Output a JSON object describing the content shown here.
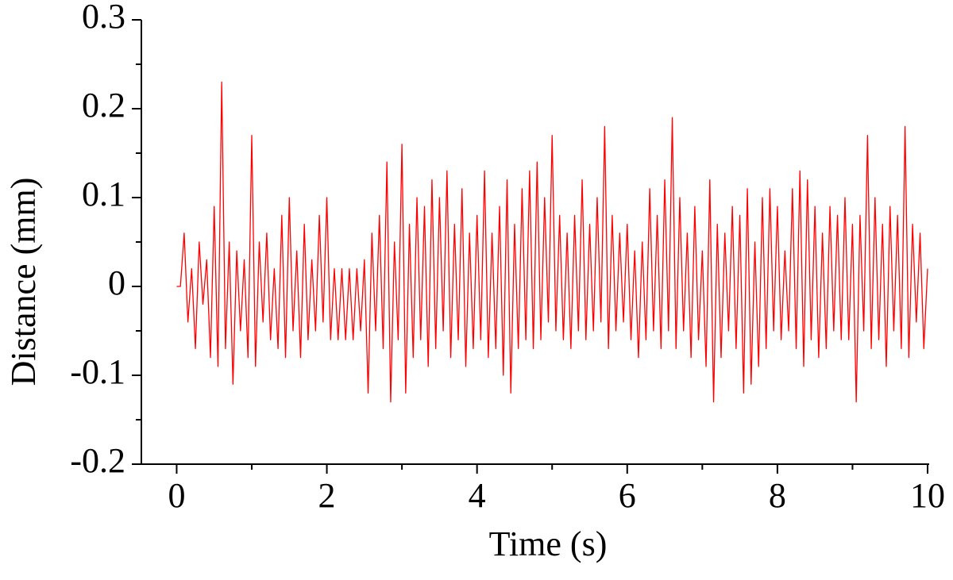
{
  "chart_data": {
    "type": "line",
    "xlabel": "Time (s)",
    "ylabel": "Distance (mm)",
    "xlim": [
      -0.47,
      10
    ],
    "ylim": [
      -0.2,
      0.3
    ],
    "xticks": [
      0,
      2,
      4,
      6,
      8,
      10
    ],
    "yticks": [
      -0.2,
      -0.1,
      0,
      0.1,
      0.2,
      0.3
    ],
    "xminor": [
      1,
      3,
      5,
      7,
      9
    ],
    "yminor": [
      -0.15,
      -0.05,
      0.05,
      0.15,
      0.25
    ],
    "grid": false,
    "series": [
      {
        "color": "#ff0000",
        "x": [
          0,
          0.05,
          0.1,
          0.15,
          0.2,
          0.25,
          0.3,
          0.35,
          0.4,
          0.45,
          0.5,
          0.55,
          0.6,
          0.65,
          0.7,
          0.75,
          0.8,
          0.85,
          0.9,
          0.95,
          1,
          1.05,
          1.1,
          1.15,
          1.2,
          1.25,
          1.3,
          1.35,
          1.4,
          1.45,
          1.5,
          1.55,
          1.6,
          1.65,
          1.7,
          1.75,
          1.8,
          1.85,
          1.9,
          1.95,
          2,
          2.05,
          2.1,
          2.15,
          2.2,
          2.25,
          2.3,
          2.35,
          2.4,
          2.45,
          2.5,
          2.55,
          2.6,
          2.65,
          2.7,
          2.75,
          2.8,
          2.85,
          2.9,
          2.95,
          3,
          3.05,
          3.1,
          3.15,
          3.2,
          3.25,
          3.3,
          3.35,
          3.4,
          3.45,
          3.5,
          3.55,
          3.6,
          3.65,
          3.7,
          3.75,
          3.8,
          3.85,
          3.9,
          3.95,
          4,
          4.05,
          4.1,
          4.15,
          4.2,
          4.25,
          4.3,
          4.35,
          4.4,
          4.45,
          4.5,
          4.55,
          4.6,
          4.65,
          4.7,
          4.75,
          4.8,
          4.85,
          4.9,
          4.95,
          5,
          5.05,
          5.1,
          5.15,
          5.2,
          5.25,
          5.3,
          5.35,
          5.4,
          5.45,
          5.5,
          5.55,
          5.6,
          5.65,
          5.7,
          5.75,
          5.8,
          5.85,
          5.9,
          5.95,
          6,
          6.05,
          6.1,
          6.15,
          6.2,
          6.25,
          6.3,
          6.35,
          6.4,
          6.45,
          6.5,
          6.55,
          6.6,
          6.65,
          6.7,
          6.75,
          6.8,
          6.85,
          6.9,
          6.95,
          7,
          7.05,
          7.1,
          7.15,
          7.2,
          7.25,
          7.3,
          7.35,
          7.4,
          7.45,
          7.5,
          7.55,
          7.6,
          7.65,
          7.7,
          7.75,
          7.8,
          7.85,
          7.9,
          7.95,
          8,
          8.05,
          8.1,
          8.15,
          8.2,
          8.25,
          8.3,
          8.35,
          8.4,
          8.45,
          8.5,
          8.55,
          8.6,
          8.65,
          8.7,
          8.75,
          8.8,
          8.85,
          8.9,
          8.95,
          9,
          9.05,
          9.1,
          9.15,
          9.2,
          9.25,
          9.3,
          9.35,
          9.4,
          9.45,
          9.5,
          9.55,
          9.6,
          9.65,
          9.7,
          9.75,
          9.8,
          9.85,
          9.9,
          9.95,
          10
        ],
        "values": [
          0,
          0,
          0.06,
          -0.04,
          0.02,
          -0.07,
          0.05,
          -0.02,
          0.03,
          -0.08,
          0.09,
          -0.09,
          0.23,
          -0.07,
          0.05,
          -0.11,
          0.04,
          -0.05,
          0.03,
          -0.08,
          0.17,
          -0.09,
          0.05,
          -0.04,
          0.06,
          -0.06,
          0.02,
          -0.07,
          0.08,
          -0.08,
          0.1,
          -0.05,
          0.04,
          -0.08,
          0.07,
          -0.06,
          0.03,
          -0.05,
          0.08,
          -0.04,
          0.1,
          -0.06,
          0.02,
          -0.06,
          0.02,
          -0.06,
          0.02,
          -0.06,
          0.02,
          -0.05,
          0.03,
          -0.12,
          0.06,
          -0.05,
          0.08,
          -0.07,
          0.14,
          -0.13,
          0.05,
          -0.06,
          0.16,
          -0.12,
          0.07,
          -0.08,
          0.1,
          -0.06,
          0.09,
          -0.09,
          0.12,
          -0.07,
          0.1,
          -0.05,
          0.13,
          -0.08,
          0.07,
          -0.06,
          0.11,
          -0.09,
          0.06,
          -0.07,
          0.08,
          -0.06,
          0.13,
          -0.08,
          0.06,
          -0.07,
          0.09,
          -0.1,
          0.12,
          -0.12,
          0.07,
          -0.07,
          0.11,
          -0.06,
          0.13,
          -0.07,
          0.14,
          -0.06,
          0.1,
          -0.04,
          0.17,
          -0.05,
          0.08,
          -0.06,
          0.06,
          -0.07,
          0.08,
          -0.05,
          0.12,
          -0.06,
          0.07,
          -0.05,
          0.1,
          -0.04,
          0.18,
          -0.07,
          0.08,
          -0.05,
          0.06,
          -0.04,
          0.07,
          -0.06,
          0.04,
          -0.08,
          0.05,
          -0.06,
          0.11,
          -0.05,
          0.08,
          -0.07,
          0.12,
          -0.05,
          0.19,
          -0.07,
          0.1,
          -0.05,
          0.06,
          -0.08,
          0.09,
          -0.06,
          0.04,
          -0.09,
          0.12,
          -0.13,
          0.07,
          -0.08,
          0.06,
          -0.05,
          0.09,
          -0.07,
          0.08,
          -0.12,
          0.11,
          -0.11,
          0.05,
          -0.09,
          0.1,
          -0.07,
          0.11,
          -0.05,
          0.09,
          -0.06,
          0.04,
          -0.05,
          0.11,
          -0.07,
          0.13,
          -0.09,
          0.12,
          -0.06,
          0.09,
          -0.08,
          0.06,
          -0.07,
          0.09,
          -0.05,
          0.08,
          -0.06,
          0.1,
          -0.06,
          0.07,
          -0.13,
          0.08,
          -0.05,
          0.17,
          -0.07,
          0.1,
          -0.06,
          0.07,
          -0.09,
          0.09,
          -0.05,
          0.08,
          -0.07,
          0.18,
          -0.08,
          0.07,
          -0.04,
          0.06,
          -0.07,
          0.02
        ]
      }
    ]
  }
}
